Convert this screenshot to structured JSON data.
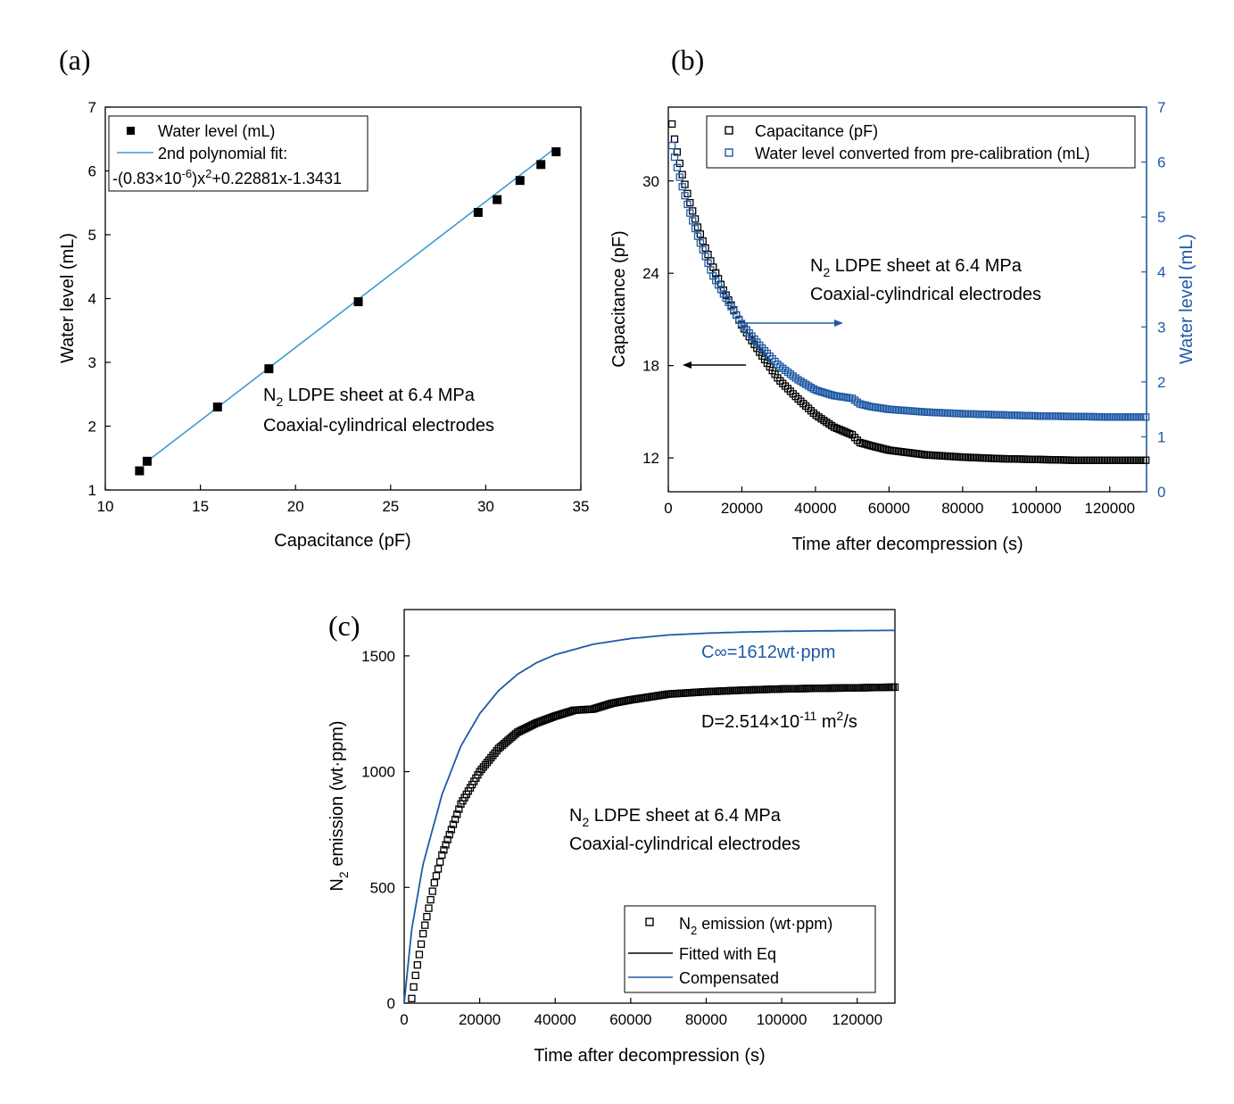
{
  "figure": {
    "colors": {
      "black": "#000000",
      "blue": "#1f5aa6",
      "fit_line": "#3a9bd6"
    }
  },
  "chart_data": [
    {
      "panel": "(a)",
      "type": "scatter",
      "xlabel": "Capacitance (pF)",
      "ylabel": "Water level (mL)",
      "xlim": [
        10,
        35
      ],
      "ylim": [
        1,
        7
      ],
      "xticks": [
        "10",
        "15",
        "20",
        "25",
        "30",
        "35"
      ],
      "yticks": [
        "1",
        "2",
        "3",
        "4",
        "5",
        "6",
        "7"
      ],
      "series": [
        {
          "name": "Water level (mL)",
          "kind": "marker-square-filled",
          "x": [
            11.8,
            12.2,
            15.9,
            18.6,
            23.3,
            29.6,
            30.6,
            31.8,
            32.9,
            33.7
          ],
          "y": [
            1.3,
            1.45,
            2.3,
            2.9,
            3.95,
            5.35,
            5.55,
            5.85,
            6.1,
            6.3
          ]
        },
        {
          "name": "2nd polynomial fit:",
          "kind": "line",
          "equation": "-(0.83×10-6)x2+0.22881x-1.3431",
          "x_range": [
            12,
            33.7
          ]
        }
      ],
      "legend": {
        "item1": "Water level (mL)",
        "item2": "2nd polynomial fit:",
        "eq_a": "-(0.83×10",
        "eq_exp1": "-6",
        "eq_b": ")x",
        "eq_exp2": "2",
        "eq_c": "+0.22881x-1.3431"
      },
      "annotation": {
        "line1_pre": "N",
        "line1_sub": "2",
        "line1_post": " LDPE sheet at 6.4 MPa",
        "line2": "Coaxial-cylindrical electrodes"
      },
      "grid": false,
      "legend_position": "top-left"
    },
    {
      "panel": "(b)",
      "type": "line",
      "xlabel": "Time after decompression (s)",
      "ylabel": "Capacitance (pF)",
      "ylabel_right": "Water level (mL)",
      "xlim": [
        0,
        130000
      ],
      "ylim": [
        9.8,
        34.8
      ],
      "ylim_right": [
        0,
        7
      ],
      "xticks": [
        "0",
        "20000",
        "40000",
        "60000",
        "80000",
        "100000",
        "120000"
      ],
      "yticks": [
        "12",
        "18",
        "24",
        "30"
      ],
      "yticks_right": [
        "0",
        "1",
        "2",
        "3",
        "4",
        "5",
        "6",
        "7"
      ],
      "series": [
        {
          "name": "Capacitance (pF)",
          "axis": "left",
          "kind": "marker-square-open",
          "color": "#000000",
          "x": [
            1000,
            2000,
            4000,
            6000,
            8000,
            10000,
            12000,
            15000,
            20000,
            25000,
            30000,
            35000,
            40000,
            45000,
            50000,
            52000,
            55000,
            60000,
            70000,
            80000,
            90000,
            100000,
            110000,
            120000,
            130000
          ],
          "y": [
            33.7,
            32.3,
            30.2,
            28.5,
            27.0,
            25.7,
            24.5,
            22.9,
            20.6,
            18.8,
            17.1,
            15.9,
            14.8,
            14.0,
            13.5,
            13.0,
            12.8,
            12.5,
            12.2,
            12.05,
            11.95,
            11.9,
            11.85,
            11.85,
            11.85
          ]
        },
        {
          "name": "Water level converted from pre-calibration (mL)",
          "axis": "right",
          "kind": "marker-square-open",
          "color": "#1f5aa6",
          "x": [
            1000,
            2000,
            4000,
            6000,
            8000,
            10000,
            12000,
            15000,
            20000,
            25000,
            30000,
            35000,
            40000,
            45000,
            50000,
            52000,
            55000,
            60000,
            70000,
            80000,
            90000,
            100000,
            110000,
            120000,
            130000
          ],
          "y": [
            6.3,
            6.0,
            5.5,
            5.05,
            4.65,
            4.3,
            3.95,
            3.6,
            3.05,
            2.65,
            2.3,
            2.05,
            1.85,
            1.75,
            1.7,
            1.6,
            1.55,
            1.5,
            1.45,
            1.42,
            1.4,
            1.38,
            1.37,
            1.36,
            1.36
          ]
        }
      ],
      "legend": {
        "item1": "Capacitance (pF)",
        "item2": "Water level converted from pre-calibration (mL)"
      },
      "annotation": {
        "line1_pre": "N",
        "line1_sub": "2",
        "line1_post": " LDPE sheet at 6.4 MPa",
        "line2": "Coaxial-cylindrical electrodes"
      },
      "grid": false,
      "legend_position": "top"
    },
    {
      "panel": "(c)",
      "type": "line",
      "xlabel": "Time after decompression (s)",
      "ylabel_pre": "N",
      "ylabel_sub": "2",
      "ylabel_post": " emission (wt·ppm)",
      "xlim": [
        0,
        130000
      ],
      "ylim": [
        0,
        1700
      ],
      "xticks": [
        "0",
        "20000",
        "40000",
        "60000",
        "80000",
        "100000",
        "120000"
      ],
      "yticks": [
        "0",
        "500",
        "1000",
        "1500"
      ],
      "series": [
        {
          "name": "N2 emission (wt·ppm)",
          "kind": "marker-square-open",
          "color": "#000000",
          "x": [
            2000,
            3000,
            5000,
            8000,
            10000,
            15000,
            20000,
            25000,
            30000,
            35000,
            40000,
            45000,
            50000,
            52000,
            55000,
            60000,
            70000,
            80000,
            90000,
            100000,
            110000,
            120000,
            130000
          ],
          "y": [
            20,
            120,
            300,
            520,
            640,
            860,
            1000,
            1100,
            1170,
            1210,
            1240,
            1265,
            1270,
            1280,
            1295,
            1310,
            1335,
            1345,
            1352,
            1357,
            1360,
            1362,
            1365
          ]
        },
        {
          "name": "Fitted with Eq",
          "kind": "line",
          "color": "#000000"
        },
        {
          "name": "Compensated",
          "kind": "line",
          "color": "#1f5aa6",
          "x": [
            0,
            2000,
            5000,
            10000,
            15000,
            20000,
            25000,
            30000,
            35000,
            40000,
            50000,
            60000,
            70000,
            80000,
            90000,
            100000,
            110000,
            120000,
            130000
          ],
          "y": [
            0,
            320,
            600,
            900,
            1110,
            1250,
            1350,
            1420,
            1470,
            1505,
            1550,
            1575,
            1590,
            1598,
            1603,
            1606,
            1608,
            1609,
            1610
          ]
        }
      ],
      "legend": {
        "item1_pre": "N",
        "item1_sub": "2",
        "item1_post": " emission (wt·ppm)",
        "item2": "Fitted with Eq",
        "item3": "Compensated"
      },
      "annotation": {
        "line1_pre": "N",
        "line1_sub": "2",
        "line1_post": " LDPE sheet at 6.4 MPa",
        "line2": "Coaxial-cylindrical electrodes"
      },
      "c_inf": "C∞=1612wt·ppm",
      "d_pre": "D=2.514×10",
      "d_exp": "-11",
      "d_mid": " m",
      "d_exp2": "2",
      "d_post": "/s",
      "grid": false,
      "legend_position": "bottom-right"
    }
  ]
}
